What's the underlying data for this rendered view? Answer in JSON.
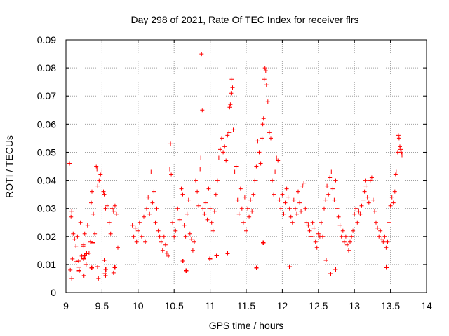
{
  "chart_data": {
    "type": "scatter",
    "title": "Day 298 of 2021, Rate Of TEC Index for receiver flrs",
    "xlabel": "GPS time / hours",
    "ylabel": "ROTI / TECUs",
    "xlim": [
      9,
      14
    ],
    "ylim": [
      0,
      0.09
    ],
    "xticks": [
      9,
      9.5,
      10,
      10.5,
      11,
      11.5,
      12,
      12.5,
      13,
      13.5,
      14
    ],
    "yticks": [
      0,
      0.01,
      0.02,
      0.03,
      0.04,
      0.05,
      0.06,
      0.07,
      0.08,
      0.09
    ],
    "grid": true,
    "marker": "+",
    "color": "#ff0000",
    "series": [
      {
        "points": [
          [
            9.05,
            0.046
          ],
          [
            9.06,
            0.008
          ],
          [
            9.07,
            0.027
          ],
          [
            9.08,
            0.029
          ],
          [
            9.09,
            0.012
          ],
          [
            9.1,
            0.021
          ],
          [
            9.12,
            0.019
          ],
          [
            9.14,
            0.011
          ],
          [
            9.16,
            0.02
          ],
          [
            9.18,
            0.009
          ],
          [
            9.2,
            0.025
          ],
          [
            9.22,
            0.013
          ],
          [
            9.24,
            0.017
          ],
          [
            9.26,
            0.021
          ],
          [
            9.28,
            0.01
          ],
          [
            9.3,
            0.024
          ],
          [
            9.32,
            0.014
          ],
          [
            9.34,
            0.018
          ],
          [
            9.35,
            0.032
          ],
          [
            9.36,
            0.036
          ],
          [
            9.38,
            0.028
          ],
          [
            9.4,
            0.021
          ],
          [
            9.42,
            0.045
          ],
          [
            9.43,
            0.044
          ],
          [
            9.44,
            0.038
          ],
          [
            9.46,
            0.04
          ],
          [
            9.48,
            0.042
          ],
          [
            9.5,
            0.043
          ],
          [
            9.52,
            0.036
          ],
          [
            9.53,
            0.035
          ],
          [
            9.55,
            0.03
          ],
          [
            9.57,
            0.031
          ],
          [
            9.6,
            0.025
          ],
          [
            9.62,
            0.021
          ],
          [
            9.64,
            0.03
          ],
          [
            9.66,
            0.029
          ],
          [
            9.68,
            0.031
          ],
          [
            9.7,
            0.028
          ],
          [
            9.72,
            0.016
          ],
          [
            9.08,
            0.005
          ],
          [
            9.25,
            0.006
          ],
          [
            9.45,
            0.005
          ],
          [
            9.55,
            0.006
          ],
          [
            9.66,
            0.007
          ],
          [
            9.92,
            0.024
          ],
          [
            9.94,
            0.02
          ],
          [
            9.96,
            0.023
          ],
          [
            9.98,
            0.018
          ],
          [
            10.0,
            0.022
          ],
          [
            10.02,
            0.025
          ],
          [
            10.05,
            0.02
          ],
          [
            10.08,
            0.027
          ],
          [
            10.1,
            0.018
          ],
          [
            10.12,
            0.03
          ],
          [
            10.14,
            0.034
          ],
          [
            10.16,
            0.028
          ],
          [
            10.18,
            0.043
          ],
          [
            10.2,
            0.032
          ],
          [
            10.22,
            0.036
          ],
          [
            10.24,
            0.025
          ],
          [
            10.26,
            0.03
          ],
          [
            10.28,
            0.022
          ],
          [
            10.3,
            0.02
          ],
          [
            10.32,
            0.018
          ],
          [
            10.34,
            0.015
          ],
          [
            10.36,
            0.02
          ],
          [
            10.38,
            0.017
          ],
          [
            10.4,
            0.014
          ],
          [
            10.42,
            0.013
          ],
          [
            10.44,
            0.044
          ],
          [
            10.45,
            0.053
          ],
          [
            10.46,
            0.042
          ],
          [
            10.48,
            0.025
          ],
          [
            10.5,
            0.02
          ],
          [
            10.52,
            0.022
          ],
          [
            10.55,
            0.03
          ],
          [
            10.58,
            0.026
          ],
          [
            10.6,
            0.037
          ],
          [
            10.62,
            0.035
          ],
          [
            10.64,
            0.024
          ],
          [
            10.66,
            0.02
          ],
          [
            10.68,
            0.028
          ],
          [
            10.7,
            0.033
          ],
          [
            10.72,
            0.021
          ],
          [
            10.74,
            0.019
          ],
          [
            10.76,
            0.015
          ],
          [
            10.78,
            0.018
          ],
          [
            10.8,
            0.04
          ],
          [
            10.82,
            0.036
          ],
          [
            10.84,
            0.031
          ],
          [
            10.86,
            0.044
          ],
          [
            10.87,
            0.048
          ],
          [
            10.88,
            0.085
          ],
          [
            10.89,
            0.065
          ],
          [
            10.9,
            0.03
          ],
          [
            10.92,
            0.028
          ],
          [
            10.94,
            0.032
          ],
          [
            10.96,
            0.026
          ],
          [
            10.98,
            0.037
          ],
          [
            11.0,
            0.03
          ],
          [
            11.02,
            0.025
          ],
          [
            11.04,
            0.022
          ],
          [
            11.06,
            0.029
          ],
          [
            11.08,
            0.035
          ],
          [
            11.1,
            0.04
          ],
          [
            11.12,
            0.048
          ],
          [
            11.14,
            0.051
          ],
          [
            11.16,
            0.055
          ],
          [
            11.18,
            0.05
          ],
          [
            11.2,
            0.052
          ],
          [
            11.22,
            0.047
          ],
          [
            11.24,
            0.056
          ],
          [
            11.26,
            0.057
          ],
          [
            11.27,
            0.066
          ],
          [
            11.28,
            0.067
          ],
          [
            11.29,
            0.071
          ],
          [
            11.3,
            0.076
          ],
          [
            11.31,
            0.073
          ],
          [
            11.32,
            0.058
          ],
          [
            11.34,
            0.043
          ],
          [
            11.36,
            0.045
          ],
          [
            11.38,
            0.033
          ],
          [
            11.4,
            0.028
          ],
          [
            11.42,
            0.037
          ],
          [
            11.44,
            0.03
          ],
          [
            11.46,
            0.025
          ],
          [
            11.48,
            0.034
          ],
          [
            11.5,
            0.022
          ],
          [
            11.52,
            0.03
          ],
          [
            11.54,
            0.027
          ],
          [
            11.56,
            0.033
          ],
          [
            11.58,
            0.029
          ],
          [
            11.6,
            0.035
          ],
          [
            11.62,
            0.04
          ],
          [
            11.64,
            0.045
          ],
          [
            11.66,
            0.054
          ],
          [
            11.68,
            0.05
          ],
          [
            11.7,
            0.046
          ],
          [
            11.72,
            0.055
          ],
          [
            11.73,
            0.06
          ],
          [
            11.74,
            0.062
          ],
          [
            11.75,
            0.076
          ],
          [
            11.76,
            0.08
          ],
          [
            11.77,
            0.079
          ],
          [
            11.78,
            0.074
          ],
          [
            11.8,
            0.068
          ],
          [
            11.82,
            0.057
          ],
          [
            11.84,
            0.055
          ],
          [
            11.86,
            0.04
          ],
          [
            11.88,
            0.035
          ],
          [
            11.9,
            0.043
          ],
          [
            11.92,
            0.048
          ],
          [
            11.94,
            0.047
          ],
          [
            11.96,
            0.033
          ],
          [
            11.98,
            0.03
          ],
          [
            12.0,
            0.035
          ],
          [
            12.02,
            0.028
          ],
          [
            12.04,
            0.032
          ],
          [
            12.06,
            0.037
          ],
          [
            12.08,
            0.034
          ],
          [
            12.1,
            0.03
          ],
          [
            12.12,
            0.027
          ],
          [
            12.14,
            0.025
          ],
          [
            12.16,
            0.033
          ],
          [
            12.18,
            0.03
          ],
          [
            12.2,
            0.028
          ],
          [
            12.22,
            0.036
          ],
          [
            12.24,
            0.032
          ],
          [
            12.26,
            0.029
          ],
          [
            12.28,
            0.038
          ],
          [
            12.3,
            0.039
          ],
          [
            12.32,
            0.03
          ],
          [
            12.34,
            0.025
          ],
          [
            12.36,
            0.024
          ],
          [
            12.38,
            0.022
          ],
          [
            12.4,
            0.02
          ],
          [
            12.42,
            0.025
          ],
          [
            12.44,
            0.023
          ],
          [
            12.46,
            0.018
          ],
          [
            12.48,
            0.016
          ],
          [
            12.5,
            0.021
          ],
          [
            12.52,
            0.02
          ],
          [
            12.54,
            0.025
          ],
          [
            12.56,
            0.02
          ],
          [
            12.58,
            0.03
          ],
          [
            12.6,
            0.033
          ],
          [
            12.62,
            0.038
          ],
          [
            12.64,
            0.035
          ],
          [
            12.66,
            0.041
          ],
          [
            12.68,
            0.043
          ],
          [
            12.7,
            0.037
          ],
          [
            12.72,
            0.033
          ],
          [
            12.74,
            0.04
          ],
          [
            12.76,
            0.03
          ],
          [
            12.78,
            0.027
          ],
          [
            12.8,
            0.024
          ],
          [
            12.82,
            0.02
          ],
          [
            12.84,
            0.022
          ],
          [
            12.86,
            0.018
          ],
          [
            12.88,
            0.02
          ],
          [
            12.9,
            0.017
          ],
          [
            12.92,
            0.015
          ],
          [
            12.94,
            0.018
          ],
          [
            12.96,
            0.02
          ],
          [
            12.98,
            0.022
          ],
          [
            13.0,
            0.028
          ],
          [
            13.02,
            0.03
          ],
          [
            13.04,
            0.025
          ],
          [
            13.06,
            0.029
          ],
          [
            13.08,
            0.028
          ],
          [
            13.1,
            0.031
          ],
          [
            13.12,
            0.033
          ],
          [
            13.14,
            0.036
          ],
          [
            13.15,
            0.04
          ],
          [
            13.16,
            0.038
          ],
          [
            13.18,
            0.034
          ],
          [
            13.2,
            0.032
          ],
          [
            13.22,
            0.04
          ],
          [
            13.24,
            0.041
          ],
          [
            13.26,
            0.033
          ],
          [
            13.28,
            0.029
          ],
          [
            13.3,
            0.025
          ],
          [
            13.32,
            0.023
          ],
          [
            13.34,
            0.02
          ],
          [
            13.36,
            0.022
          ],
          [
            13.38,
            0.019
          ],
          [
            13.4,
            0.018
          ],
          [
            13.42,
            0.02
          ],
          [
            13.44,
            0.016
          ],
          [
            13.46,
            0.018
          ],
          [
            13.48,
            0.025
          ],
          [
            13.5,
            0.031
          ],
          [
            13.52,
            0.034
          ],
          [
            13.54,
            0.032
          ],
          [
            13.56,
            0.036
          ],
          [
            13.57,
            0.042
          ],
          [
            13.58,
            0.043
          ],
          [
            13.6,
            0.05
          ],
          [
            13.61,
            0.056
          ],
          [
            13.62,
            0.055
          ],
          [
            13.63,
            0.052
          ],
          [
            13.64,
            0.051
          ],
          [
            13.65,
            0.05
          ],
          [
            13.66,
            0.049
          ]
        ]
      }
    ],
    "dense_band": {
      "segments": [
        [
          9.05,
          9.72
        ],
        [
          9.92,
          13.67
        ]
      ],
      "range": [
        0.004,
        0.02
      ],
      "typical": 0.011
    }
  }
}
